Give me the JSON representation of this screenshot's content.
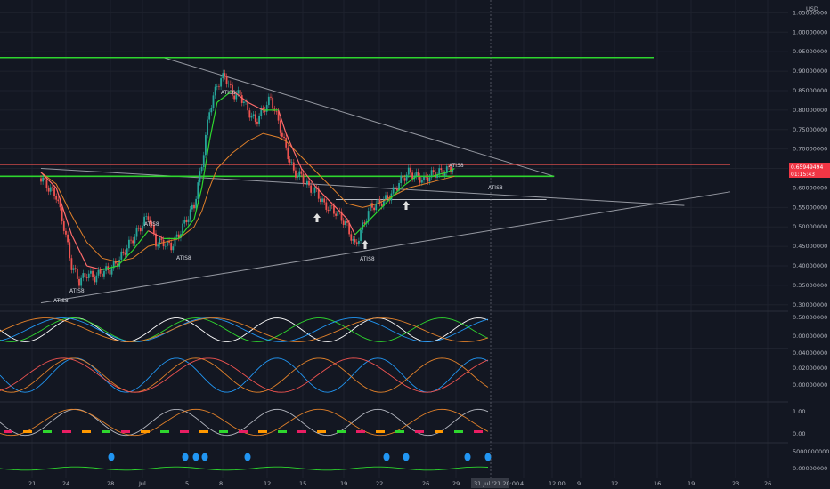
{
  "currency": "USD",
  "colors": {
    "background": "#131722",
    "grid": "#1e222d",
    "up": "#26a69a",
    "down": "#ef5350",
    "green_line": "#2ed62e",
    "trend_line": "#9598a1",
    "orange": "#e0802a",
    "price_badge": "#f23645",
    "crosshair_badge": "#363a45"
  },
  "chart_data": [
    {
      "type": "candlestick",
      "symbol_unit": "USD",
      "y_ticks": [
        "1.05000000",
        "1.00000000",
        "0.95000000",
        "0.90000000",
        "0.85000000",
        "0.80000000",
        "0.75000000",
        "0.70000000",
        "0.65000000",
        "0.60000000",
        "0.55000000",
        "0.50000000",
        "0.45000000",
        "0.40000000",
        "0.35000000",
        "0.30000000"
      ],
      "ylim": [
        0.295,
        1.06
      ],
      "x_ticks": [
        "21",
        "24",
        "28",
        "Jul",
        "5",
        "8",
        "12",
        "15",
        "19",
        "22",
        "26",
        "29",
        "4",
        "12:00",
        "9",
        "12",
        "16",
        "19",
        "23",
        "26"
      ],
      "current_price": "0.65949494",
      "countdown": "01:15:43",
      "crosshair_time": "31 Jul '21   20:00",
      "annotations": [
        "ATIS8",
        "ATIS8",
        "ATIS8",
        "ATIS8",
        "ATIS8",
        "ATIS8",
        "ATIS8",
        "ATIS8"
      ],
      "close_path": [
        [
          20,
          0.625
        ],
        [
          22,
          0.6
        ],
        [
          24,
          0.58
        ],
        [
          26,
          0.5
        ],
        [
          28,
          0.4
        ],
        [
          30,
          0.36
        ],
        [
          32,
          0.38
        ],
        [
          34,
          0.37
        ],
        [
          36,
          0.385
        ],
        [
          38,
          0.39
        ],
        [
          40,
          0.41
        ],
        [
          42,
          0.44
        ],
        [
          44,
          0.47
        ],
        [
          46,
          0.5
        ],
        [
          48,
          0.53
        ],
        [
          50,
          0.46
        ],
        [
          52,
          0.46
        ],
        [
          54,
          0.45
        ],
        [
          56,
          0.48
        ],
        [
          58,
          0.52
        ],
        [
          60,
          0.555
        ],
        [
          62,
          0.66
        ],
        [
          64,
          0.8
        ],
        [
          66,
          0.865
        ],
        [
          68,
          0.89
        ],
        [
          70,
          0.84
        ],
        [
          72,
          0.84
        ],
        [
          74,
          0.8
        ],
        [
          76,
          0.77
        ],
        [
          78,
          0.8
        ],
        [
          80,
          0.83
        ],
        [
          82,
          0.77
        ],
        [
          84,
          0.7
        ],
        [
          86,
          0.64
        ],
        [
          88,
          0.63
        ],
        [
          90,
          0.6
        ],
        [
          92,
          0.59
        ],
        [
          94,
          0.555
        ],
        [
          96,
          0.545
        ],
        [
          98,
          0.53
        ],
        [
          100,
          0.5
        ],
        [
          102,
          0.45
        ],
        [
          104,
          0.5
        ],
        [
          106,
          0.55
        ],
        [
          108,
          0.56
        ],
        [
          110,
          0.57
        ],
        [
          112,
          0.59
        ],
        [
          114,
          0.62
        ],
        [
          116,
          0.64
        ],
        [
          118,
          0.63
        ],
        [
          120,
          0.62
        ],
        [
          122,
          0.635
        ],
        [
          124,
          0.64
        ],
        [
          126,
          0.645
        ],
        [
          128,
          0.66
        ]
      ],
      "ma_fast_path": [
        [
          20,
          0.64
        ],
        [
          24,
          0.6
        ],
        [
          28,
          0.48
        ],
        [
          32,
          0.4
        ],
        [
          36,
          0.39
        ],
        [
          40,
          0.4
        ],
        [
          44,
          0.44
        ],
        [
          48,
          0.49
        ],
        [
          52,
          0.47
        ],
        [
          56,
          0.47
        ],
        [
          60,
          0.52
        ],
        [
          62,
          0.6
        ],
        [
          64,
          0.72
        ],
        [
          66,
          0.82
        ],
        [
          70,
          0.85
        ],
        [
          74,
          0.82
        ],
        [
          78,
          0.8
        ],
        [
          82,
          0.8
        ],
        [
          84,
          0.74
        ],
        [
          88,
          0.65
        ],
        [
          92,
          0.6
        ],
        [
          96,
          0.56
        ],
        [
          100,
          0.52
        ],
        [
          102,
          0.48
        ],
        [
          106,
          0.52
        ],
        [
          110,
          0.56
        ],
        [
          114,
          0.6
        ],
        [
          118,
          0.63
        ],
        [
          122,
          0.63
        ],
        [
          126,
          0.64
        ],
        [
          128,
          0.65
        ]
      ],
      "ma_slow_path": [
        [
          20,
          0.64
        ],
        [
          24,
          0.61
        ],
        [
          28,
          0.53
        ],
        [
          32,
          0.46
        ],
        [
          36,
          0.42
        ],
        [
          40,
          0.41
        ],
        [
          44,
          0.42
        ],
        [
          48,
          0.45
        ],
        [
          52,
          0.46
        ],
        [
          56,
          0.47
        ],
        [
          60,
          0.5
        ],
        [
          62,
          0.54
        ],
        [
          64,
          0.6
        ],
        [
          66,
          0.65
        ],
        [
          70,
          0.69
        ],
        [
          74,
          0.72
        ],
        [
          78,
          0.74
        ],
        [
          82,
          0.73
        ],
        [
          84,
          0.72
        ],
        [
          88,
          0.68
        ],
        [
          92,
          0.64
        ],
        [
          96,
          0.6
        ],
        [
          100,
          0.56
        ],
        [
          104,
          0.55
        ],
        [
          108,
          0.56
        ],
        [
          112,
          0.58
        ],
        [
          116,
          0.6
        ],
        [
          120,
          0.61
        ],
        [
          124,
          0.62
        ],
        [
          128,
          0.63
        ]
      ],
      "horizontal_lines": [
        {
          "y": 0.935,
          "x_start": 0,
          "x_end": 180,
          "color": "green"
        },
        {
          "y": 0.63,
          "x_start": 0,
          "x_end": 154,
          "color": "green"
        },
        {
          "y": 0.57,
          "x_start": 97,
          "x_end": 152,
          "color": "white"
        },
        {
          "y": 0.66,
          "x_start": 0,
          "x_end": 200,
          "color": "red"
        }
      ],
      "trend_lines": [
        {
          "from": [
            52,
            0.935
          ],
          "to": [
            154,
            0.63
          ]
        },
        {
          "from": [
            20,
            0.305
          ],
          "to": [
            200,
            0.59
          ]
        },
        {
          "from": [
            20,
            0.65
          ],
          "to": [
            188,
            0.555
          ]
        }
      ]
    },
    {
      "type": "line",
      "name": "oscillator_1",
      "y_ticks": [
        "0.50000000",
        "0.00000000"
      ]
    },
    {
      "type": "line",
      "name": "oscillator_2",
      "y_ticks": [
        "0.04000000",
        "0.02000000",
        "0.00000000"
      ]
    },
    {
      "type": "line",
      "name": "oscillator_3",
      "y_ticks": [
        "1.00",
        "0.00"
      ]
    },
    {
      "type": "area",
      "name": "volume_like",
      "y_ticks": [
        "5000000000.00000000",
        "0.00000000"
      ]
    }
  ]
}
